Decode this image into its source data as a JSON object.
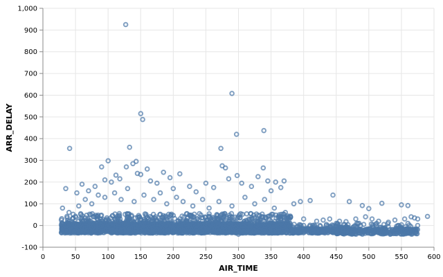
{
  "chart_data": {
    "type": "scatter",
    "title": "",
    "xlabel": "AIR_TIME",
    "ylabel": "ARR_DELAY",
    "xlim": [
      0,
      600
    ],
    "ylim": [
      -100,
      1000
    ],
    "x_ticks": [
      "0",
      "50",
      "100",
      "150",
      "200",
      "250",
      "300",
      "350",
      "400",
      "450",
      "500",
      "550",
      "600"
    ],
    "y_ticks": [
      "-100",
      "0",
      "100",
      "200",
      "300",
      "400",
      "500",
      "600",
      "700",
      "800",
      "900",
      "1,000"
    ],
    "grid": true,
    "legend": "none",
    "marker": "hollow-circle",
    "point_color": "#4c78a8",
    "series": [
      {
        "points": [
          [
            127,
            925
          ],
          [
            290,
            608
          ],
          [
            150,
            515
          ],
          [
            153,
            488
          ],
          [
            297,
            420
          ],
          [
            339,
            437
          ],
          [
            41,
            355
          ],
          [
            133,
            360
          ],
          [
            273,
            355
          ],
          [
            100,
            298
          ],
          [
            143,
            295
          ],
          [
            138,
            285
          ],
          [
            90,
            270
          ],
          [
            128,
            270
          ],
          [
            160,
            260
          ],
          [
            145,
            240
          ],
          [
            185,
            245
          ],
          [
            275,
            275
          ],
          [
            280,
            265
          ],
          [
            338,
            265
          ],
          [
            112,
            232
          ],
          [
            150,
            235
          ],
          [
            210,
            238
          ],
          [
            298,
            230
          ],
          [
            330,
            225
          ],
          [
            345,
            205
          ],
          [
            357,
            200
          ],
          [
            370,
            205
          ],
          [
            60,
            190
          ],
          [
            70,
            160
          ],
          [
            35,
            170
          ],
          [
            52,
            150
          ],
          [
            80,
            180
          ],
          [
            95,
            210
          ],
          [
            105,
            200
          ],
          [
            118,
            215
          ],
          [
            165,
            205
          ],
          [
            175,
            195
          ],
          [
            195,
            220
          ],
          [
            200,
            170
          ],
          [
            225,
            180
          ],
          [
            235,
            155
          ],
          [
            250,
            195
          ],
          [
            262,
            175
          ],
          [
            285,
            215
          ],
          [
            305,
            195
          ],
          [
            320,
            180
          ],
          [
            350,
            160
          ],
          [
            365,
            175
          ],
          [
            385,
            100
          ],
          [
            395,
            110
          ],
          [
            410,
            115
          ],
          [
            445,
            140
          ],
          [
            470,
            110
          ],
          [
            490,
            92
          ],
          [
            500,
            78
          ],
          [
            520,
            102
          ],
          [
            550,
            95
          ],
          [
            560,
            92
          ],
          [
            590,
            42
          ],
          [
            30,
            80
          ],
          [
            40,
            60
          ],
          [
            55,
            90
          ],
          [
            65,
            120
          ],
          [
            75,
            100
          ],
          [
            85,
            140
          ],
          [
            95,
            130
          ],
          [
            110,
            150
          ],
          [
            120,
            120
          ],
          [
            130,
            170
          ],
          [
            140,
            110
          ],
          [
            155,
            140
          ],
          [
            170,
            120
          ],
          [
            180,
            150
          ],
          [
            190,
            100
          ],
          [
            205,
            130
          ],
          [
            215,
            110
          ],
          [
            230,
            90
          ],
          [
            245,
            120
          ],
          [
            255,
            80
          ],
          [
            270,
            110
          ],
          [
            290,
            90
          ],
          [
            310,
            130
          ],
          [
            325,
            100
          ],
          [
            340,
            120
          ],
          [
            355,
            80
          ],
          [
            372,
            60
          ],
          [
            380,
            40
          ],
          [
            400,
            30
          ],
          [
            420,
            20
          ],
          [
            430,
            25
          ],
          [
            440,
            30
          ],
          [
            455,
            20
          ],
          [
            465,
            18
          ],
          [
            480,
            30
          ],
          [
            495,
            40
          ],
          [
            505,
            30
          ],
          [
            515,
            20
          ],
          [
            530,
            15
          ],
          [
            540,
            25
          ],
          [
            555,
            30
          ],
          [
            565,
            40
          ],
          [
            570,
            35
          ],
          [
            575,
            30
          ],
          [
            460,
            -20
          ],
          [
            475,
            -10
          ],
          [
            485,
            10
          ],
          [
            510,
            5
          ],
          [
            525,
            -10
          ],
          [
            545,
            0
          ],
          [
            560,
            10
          ],
          [
            415,
            -10
          ],
          [
            425,
            0
          ],
          [
            435,
            5
          ],
          [
            450,
            10
          ],
          [
            390,
            -5
          ],
          [
            400,
            0
          ],
          [
            300,
            -40
          ],
          [
            280,
            -35
          ],
          [
            260,
            -30
          ],
          [
            240,
            -20
          ],
          [
            220,
            -25
          ],
          [
            200,
            -30
          ],
          [
            180,
            -20
          ],
          [
            160,
            -25
          ],
          [
            140,
            -30
          ],
          [
            120,
            -20
          ],
          [
            100,
            -15
          ],
          [
            80,
            -20
          ],
          [
            60,
            -10
          ],
          [
            40,
            -5
          ],
          [
            30,
            -5
          ],
          [
            50,
            0
          ],
          [
            70,
            10
          ],
          [
            90,
            20
          ],
          [
            110,
            30
          ],
          [
            130,
            40
          ],
          [
            150,
            30
          ],
          [
            170,
            20
          ],
          [
            190,
            10
          ],
          [
            210,
            30
          ],
          [
            230,
            20
          ],
          [
            250,
            10
          ],
          [
            270,
            30
          ],
          [
            290,
            20
          ],
          [
            310,
            10
          ],
          [
            330,
            30
          ],
          [
            350,
            20
          ],
          [
            360,
            10
          ],
          [
            375,
            15
          ]
        ]
      }
    ]
  }
}
